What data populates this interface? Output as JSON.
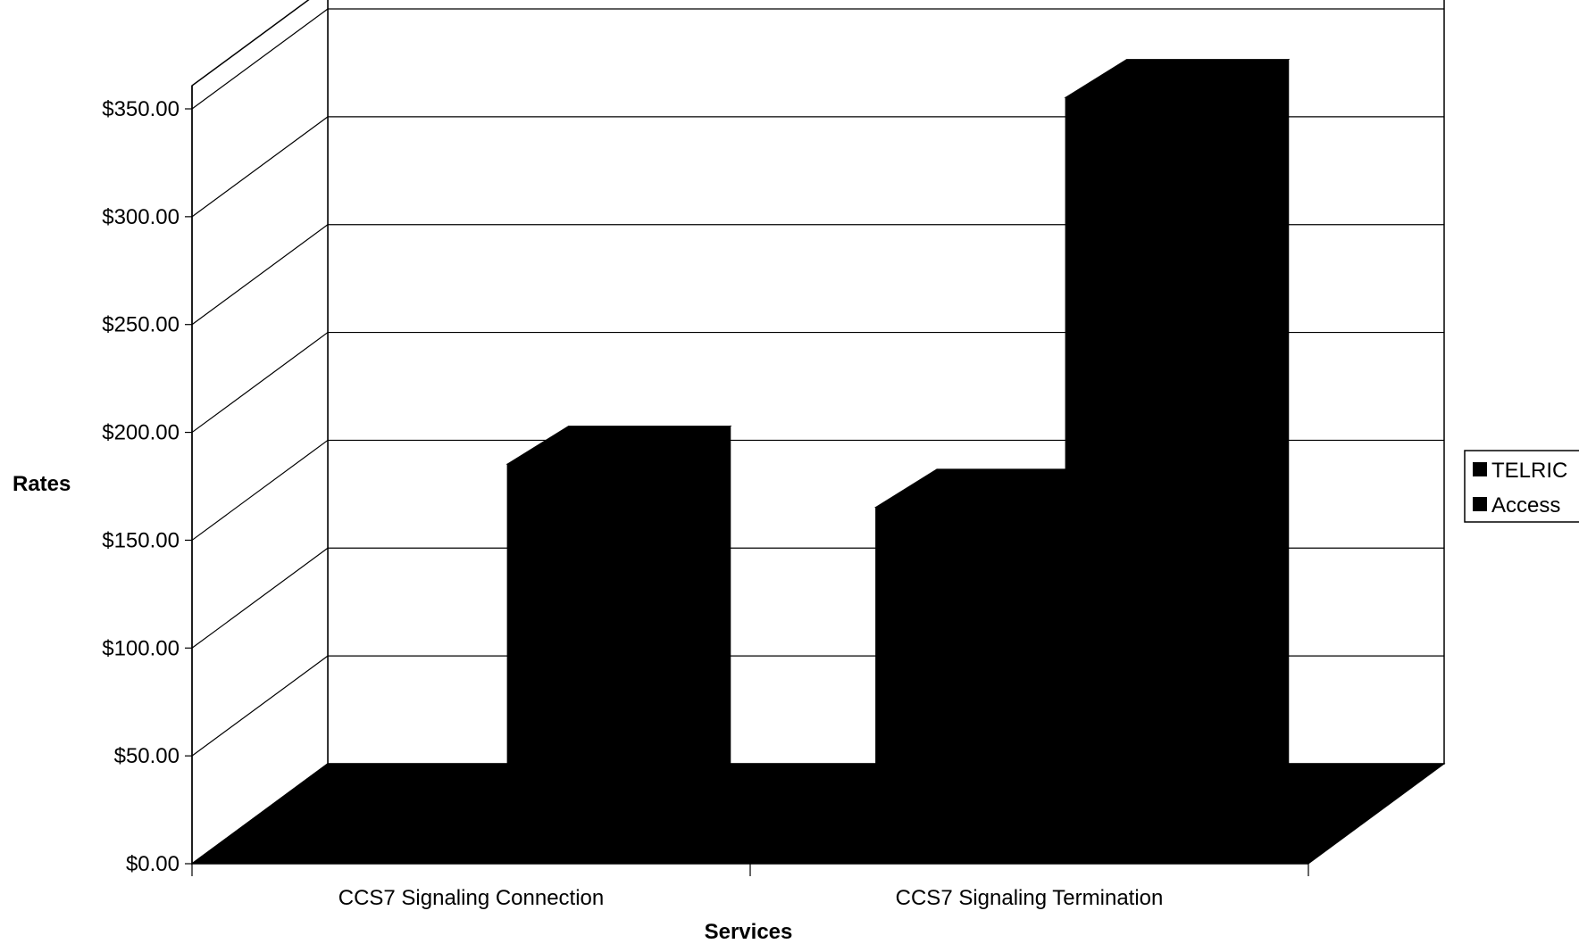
{
  "chart_data": {
    "type": "bar",
    "categories": [
      "CCS7 Signaling Connection",
      "CCS7 Signaling Termination"
    ],
    "series": [
      {
        "name": "TELRIC",
        "values": [
          10,
          160
        ]
      },
      {
        "name": "Access",
        "values": [
          180,
          350
        ]
      }
    ],
    "xlabel": "Services",
    "ylabel": "Rates",
    "ylim": [
      0,
      350
    ],
    "yticks": [
      "$0.00",
      "$50.00",
      "$100.00",
      "$150.00",
      "$200.00",
      "$250.00",
      "$300.00",
      "$350.00"
    ],
    "yvalues": [
      0,
      50,
      100,
      150,
      200,
      250,
      300,
      350
    ],
    "grid": true,
    "legend": "right",
    "three_d": true,
    "colors": {
      "bars": "#000000",
      "grid": "#000000",
      "background": "#ffffff"
    }
  }
}
